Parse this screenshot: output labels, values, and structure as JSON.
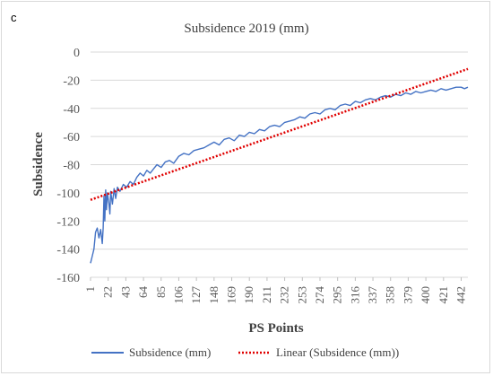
{
  "panel_label": "c",
  "chart_data": {
    "type": "line",
    "title": "Subsidence 2019 (mm)",
    "xlabel": "PS Points",
    "ylabel": "Subsidence",
    "ylim": [
      -160,
      0
    ],
    "yticks": [
      0,
      -20,
      -40,
      -60,
      -80,
      -100,
      -120,
      -140,
      -160
    ],
    "xlim": [
      1,
      450
    ],
    "xticks": [
      1,
      22,
      43,
      64,
      85,
      106,
      127,
      148,
      169,
      190,
      211,
      232,
      253,
      274,
      295,
      316,
      337,
      358,
      379,
      400,
      421,
      442
    ],
    "grid": "horizontal",
    "legend_position": "bottom",
    "series": [
      {
        "name": "Subsidence (mm)",
        "color": "#4472c4",
        "style": "solid",
        "x": [
          1,
          3,
          5,
          7,
          9,
          11,
          13,
          15,
          16,
          17,
          18,
          19,
          20,
          21,
          22,
          23,
          24,
          25,
          27,
          29,
          31,
          33,
          36,
          40,
          44,
          48,
          52,
          56,
          60,
          64,
          68,
          72,
          76,
          80,
          85,
          90,
          95,
          100,
          106,
          112,
          118,
          124,
          130,
          136,
          142,
          148,
          154,
          160,
          166,
          172,
          178,
          184,
          190,
          196,
          202,
          208,
          214,
          220,
          226,
          232,
          238,
          244,
          250,
          256,
          262,
          268,
          274,
          280,
          286,
          292,
          298,
          304,
          310,
          316,
          322,
          328,
          334,
          340,
          346,
          352,
          358,
          364,
          370,
          376,
          382,
          388,
          394,
          400,
          406,
          412,
          418,
          424,
          430,
          436,
          442,
          446,
          450
        ],
        "y": [
          -150,
          -145,
          -140,
          -128,
          -125,
          -132,
          -126,
          -136,
          -125,
          -102,
          -120,
          -98,
          -112,
          -100,
          -104,
          -108,
          -115,
          -99,
          -108,
          -97,
          -104,
          -96,
          -99,
          -94,
          -96,
          -92,
          -94,
          -89,
          -86,
          -88,
          -84,
          -86,
          -83,
          -80,
          -82,
          -78,
          -77,
          -79,
          -74,
          -72,
          -73,
          -70,
          -69,
          -68,
          -66,
          -64,
          -66,
          -62,
          -61,
          -63,
          -59,
          -60,
          -57,
          -58,
          -55,
          -56,
          -53,
          -52,
          -53,
          -50,
          -49,
          -48,
          -46,
          -47,
          -44,
          -43,
          -44,
          -41,
          -40,
          -41,
          -38,
          -37,
          -38,
          -35,
          -36,
          -34,
          -33,
          -34,
          -32,
          -31,
          -32,
          -30,
          -31,
          -29,
          -30,
          -28,
          -29,
          -28,
          -27,
          -28,
          -26,
          -27,
          -26,
          -25,
          -25,
          -26,
          -25
        ]
      },
      {
        "name": "Linear (Subsidence (mm))",
        "color": "#e00000",
        "style": "dotted",
        "x": [
          1,
          450
        ],
        "y": [
          -105,
          -12
        ]
      }
    ]
  }
}
